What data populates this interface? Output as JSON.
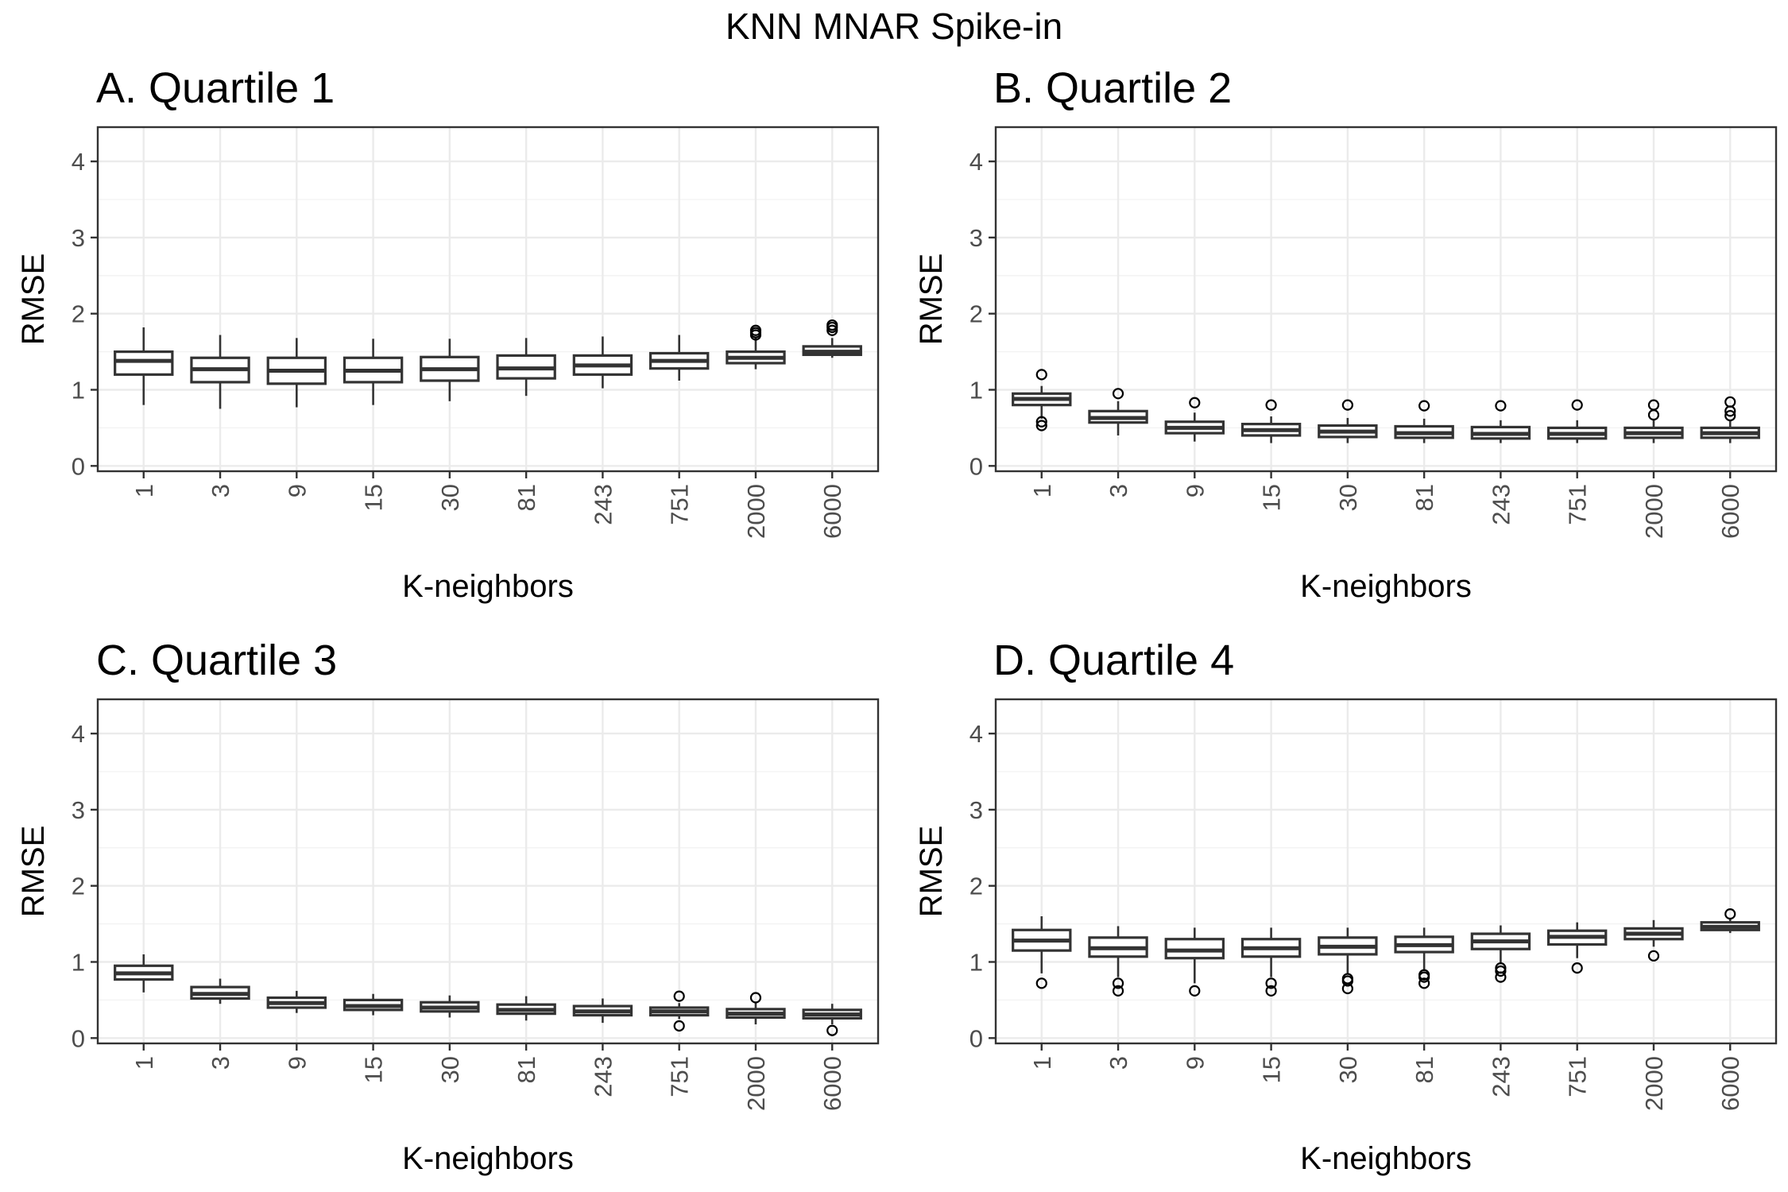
{
  "title": "KNN MNAR Spike-in",
  "chart_data": [
    {
      "type": "boxplot",
      "title": "A. Quartile 1",
      "xlabel": "K-neighbors",
      "ylabel": "RMSE",
      "categories": [
        "1",
        "3",
        "9",
        "15",
        "30",
        "81",
        "243",
        "751",
        "2000",
        "6000"
      ],
      "yticks": [
        0,
        1,
        2,
        3,
        4
      ],
      "ylim": [
        -0.07,
        4.45
      ],
      "grid": true,
      "boxes": [
        {
          "whisker_low": 0.8,
          "q1": 1.2,
          "median": 1.38,
          "q3": 1.5,
          "whisker_high": 1.82,
          "outliers": []
        },
        {
          "whisker_low": 0.75,
          "q1": 1.1,
          "median": 1.27,
          "q3": 1.42,
          "whisker_high": 1.72,
          "outliers": []
        },
        {
          "whisker_low": 0.77,
          "q1": 1.08,
          "median": 1.25,
          "q3": 1.42,
          "whisker_high": 1.68,
          "outliers": []
        },
        {
          "whisker_low": 0.8,
          "q1": 1.1,
          "median": 1.25,
          "q3": 1.42,
          "whisker_high": 1.67,
          "outliers": []
        },
        {
          "whisker_low": 0.85,
          "q1": 1.12,
          "median": 1.27,
          "q3": 1.43,
          "whisker_high": 1.67,
          "outliers": []
        },
        {
          "whisker_low": 0.92,
          "q1": 1.15,
          "median": 1.28,
          "q3": 1.45,
          "whisker_high": 1.68,
          "outliers": []
        },
        {
          "whisker_low": 1.02,
          "q1": 1.2,
          "median": 1.32,
          "q3": 1.45,
          "whisker_high": 1.7,
          "outliers": []
        },
        {
          "whisker_low": 1.12,
          "q1": 1.28,
          "median": 1.38,
          "q3": 1.48,
          "whisker_high": 1.72,
          "outliers": []
        },
        {
          "whisker_low": 1.27,
          "q1": 1.35,
          "median": 1.42,
          "q3": 1.5,
          "whisker_high": 1.68,
          "outliers": [
            1.72,
            1.75,
            1.78
          ]
        },
        {
          "whisker_low": 1.42,
          "q1": 1.46,
          "median": 1.5,
          "q3": 1.57,
          "whisker_high": 1.68,
          "outliers": [
            1.78,
            1.82,
            1.85
          ]
        }
      ]
    },
    {
      "type": "boxplot",
      "title": "B. Quartile 2",
      "xlabel": "K-neighbors",
      "ylabel": "RMSE",
      "categories": [
        "1",
        "3",
        "9",
        "15",
        "30",
        "81",
        "243",
        "751",
        "2000",
        "6000"
      ],
      "yticks": [
        0,
        1,
        2,
        3,
        4
      ],
      "ylim": [
        -0.07,
        4.45
      ],
      "grid": true,
      "boxes": [
        {
          "whisker_low": 0.62,
          "q1": 0.8,
          "median": 0.88,
          "q3": 0.95,
          "whisker_high": 1.05,
          "outliers": [
            0.53,
            0.58,
            1.2
          ]
        },
        {
          "whisker_low": 0.4,
          "q1": 0.57,
          "median": 0.63,
          "q3": 0.72,
          "whisker_high": 0.85,
          "outliers": [
            0.95
          ]
        },
        {
          "whisker_low": 0.32,
          "q1": 0.43,
          "median": 0.5,
          "q3": 0.58,
          "whisker_high": 0.7,
          "outliers": [
            0.83
          ]
        },
        {
          "whisker_low": 0.3,
          "q1": 0.4,
          "median": 0.47,
          "q3": 0.55,
          "whisker_high": 0.65,
          "outliers": [
            0.8
          ]
        },
        {
          "whisker_low": 0.3,
          "q1": 0.38,
          "median": 0.45,
          "q3": 0.53,
          "whisker_high": 0.63,
          "outliers": [
            0.8
          ]
        },
        {
          "whisker_low": 0.3,
          "q1": 0.37,
          "median": 0.43,
          "q3": 0.52,
          "whisker_high": 0.62,
          "outliers": [
            0.79
          ]
        },
        {
          "whisker_low": 0.3,
          "q1": 0.36,
          "median": 0.42,
          "q3": 0.51,
          "whisker_high": 0.6,
          "outliers": [
            0.79
          ]
        },
        {
          "whisker_low": 0.3,
          "q1": 0.36,
          "median": 0.42,
          "q3": 0.5,
          "whisker_high": 0.6,
          "outliers": [
            0.8
          ]
        },
        {
          "whisker_low": 0.3,
          "q1": 0.37,
          "median": 0.43,
          "q3": 0.5,
          "whisker_high": 0.6,
          "outliers": [
            0.67,
            0.8
          ]
        },
        {
          "whisker_low": 0.3,
          "q1": 0.37,
          "median": 0.43,
          "q3": 0.5,
          "whisker_high": 0.6,
          "outliers": [
            0.66,
            0.72,
            0.84
          ]
        }
      ]
    },
    {
      "type": "boxplot",
      "title": "C. Quartile 3",
      "xlabel": "K-neighbors",
      "ylabel": "RMSE",
      "categories": [
        "1",
        "3",
        "9",
        "15",
        "30",
        "81",
        "243",
        "751",
        "2000",
        "6000"
      ],
      "yticks": [
        0,
        1,
        2,
        3,
        4
      ],
      "ylim": [
        -0.07,
        4.45
      ],
      "grid": true,
      "boxes": [
        {
          "whisker_low": 0.6,
          "q1": 0.77,
          "median": 0.85,
          "q3": 0.95,
          "whisker_high": 1.1,
          "outliers": []
        },
        {
          "whisker_low": 0.45,
          "q1": 0.52,
          "median": 0.58,
          "q3": 0.67,
          "whisker_high": 0.78,
          "outliers": []
        },
        {
          "whisker_low": 0.33,
          "q1": 0.4,
          "median": 0.46,
          "q3": 0.53,
          "whisker_high": 0.62,
          "outliers": []
        },
        {
          "whisker_low": 0.3,
          "q1": 0.37,
          "median": 0.42,
          "q3": 0.5,
          "whisker_high": 0.58,
          "outliers": []
        },
        {
          "whisker_low": 0.27,
          "q1": 0.35,
          "median": 0.4,
          "q3": 0.47,
          "whisker_high": 0.56,
          "outliers": []
        },
        {
          "whisker_low": 0.23,
          "q1": 0.32,
          "median": 0.37,
          "q3": 0.44,
          "whisker_high": 0.55,
          "outliers": []
        },
        {
          "whisker_low": 0.2,
          "q1": 0.3,
          "median": 0.35,
          "q3": 0.42,
          "whisker_high": 0.52,
          "outliers": []
        },
        {
          "whisker_low": 0.25,
          "q1": 0.3,
          "median": 0.35,
          "q3": 0.4,
          "whisker_high": 0.46,
          "outliers": [
            0.16,
            0.55
          ]
        },
        {
          "whisker_low": 0.18,
          "q1": 0.27,
          "median": 0.32,
          "q3": 0.38,
          "whisker_high": 0.47,
          "outliers": [
            0.53
          ]
        },
        {
          "whisker_low": 0.18,
          "q1": 0.26,
          "median": 0.31,
          "q3": 0.37,
          "whisker_high": 0.45,
          "outliers": [
            0.1
          ]
        }
      ]
    },
    {
      "type": "boxplot",
      "title": "D. Quartile 4",
      "xlabel": "K-neighbors",
      "ylabel": "RMSE",
      "categories": [
        "1",
        "3",
        "9",
        "15",
        "30",
        "81",
        "243",
        "751",
        "2000",
        "6000"
      ],
      "yticks": [
        0,
        1,
        2,
        3,
        4
      ],
      "ylim": [
        -0.07,
        4.45
      ],
      "grid": true,
      "boxes": [
        {
          "whisker_low": 0.85,
          "q1": 1.15,
          "median": 1.28,
          "q3": 1.42,
          "whisker_high": 1.6,
          "outliers": [
            0.72
          ]
        },
        {
          "whisker_low": 0.8,
          "q1": 1.07,
          "median": 1.18,
          "q3": 1.32,
          "whisker_high": 1.47,
          "outliers": [
            0.62,
            0.72
          ]
        },
        {
          "whisker_low": 0.72,
          "q1": 1.05,
          "median": 1.15,
          "q3": 1.3,
          "whisker_high": 1.45,
          "outliers": [
            0.62
          ]
        },
        {
          "whisker_low": 0.8,
          "q1": 1.07,
          "median": 1.18,
          "q3": 1.3,
          "whisker_high": 1.45,
          "outliers": [
            0.62,
            0.72
          ]
        },
        {
          "whisker_low": 0.85,
          "q1": 1.1,
          "median": 1.2,
          "q3": 1.32,
          "whisker_high": 1.45,
          "outliers": [
            0.65,
            0.75,
            0.78
          ]
        },
        {
          "whisker_low": 0.9,
          "q1": 1.13,
          "median": 1.22,
          "q3": 1.33,
          "whisker_high": 1.45,
          "outliers": [
            0.72,
            0.8,
            0.83
          ]
        },
        {
          "whisker_low": 0.98,
          "q1": 1.17,
          "median": 1.27,
          "q3": 1.37,
          "whisker_high": 1.48,
          "outliers": [
            0.8,
            0.88,
            0.92
          ]
        },
        {
          "whisker_low": 1.05,
          "q1": 1.23,
          "median": 1.33,
          "q3": 1.41,
          "whisker_high": 1.52,
          "outliers": [
            0.92
          ]
        },
        {
          "whisker_low": 1.2,
          "q1": 1.3,
          "median": 1.37,
          "q3": 1.44,
          "whisker_high": 1.55,
          "outliers": [
            1.08
          ]
        },
        {
          "whisker_low": 1.38,
          "q1": 1.42,
          "median": 1.46,
          "q3": 1.52,
          "whisker_high": 1.56,
          "outliers": [
            1.63
          ]
        }
      ]
    }
  ]
}
